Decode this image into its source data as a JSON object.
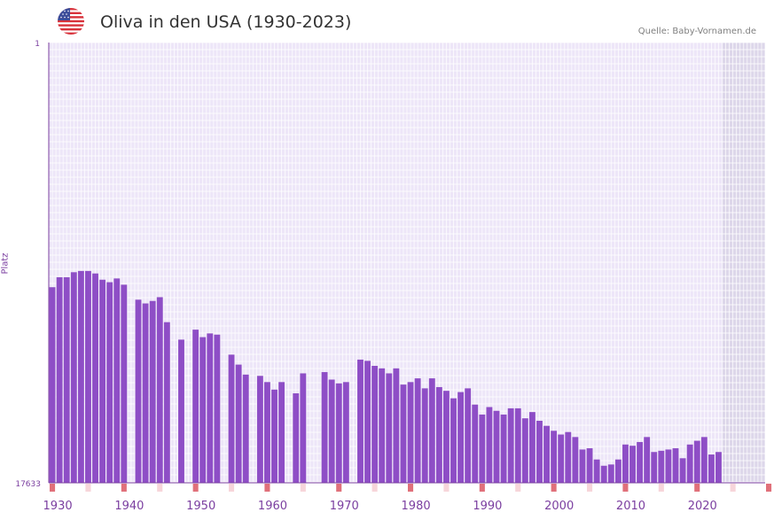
{
  "header": {
    "title": "Oliva in den USA (1930-2023)",
    "source": "Quelle: Baby-Vornamen.de",
    "flag_icon": "us-flag-icon"
  },
  "colors": {
    "bar": "#8e4ec6",
    "plot_bg": "#ede6f8",
    "future_bg": "#ddd7ea",
    "grid": "#ffffff",
    "axis": "#7b3fa0",
    "tick_text": "#7b3fa0",
    "marker_strong": "#e0707a",
    "marker_light": "#f7d5da"
  },
  "chart_data": {
    "type": "bar",
    "title": "Oliva in den USA (1930-2023)",
    "xlabel": "",
    "ylabel": "Platz",
    "y_axis_inverted": true,
    "ylim": [
      1,
      17633
    ],
    "y_ticks": [
      "1",
      "17633"
    ],
    "xlim": [
      1929,
      2029
    ],
    "x_ticks": [
      1930,
      1940,
      1950,
      1960,
      1970,
      1980,
      1990,
      2000,
      2010,
      2020
    ],
    "future_shading_from": 2023,
    "year_markers_strong": [
      1929,
      1939,
      1949,
      1959,
      1969,
      1979,
      1989,
      1999,
      2009,
      2019,
      2029
    ],
    "year_markers_light": [
      1934,
      1944,
      1954,
      1964,
      1974,
      1984,
      1994,
      2004,
      2014,
      2024
    ],
    "years": [
      1929,
      1930,
      1931,
      1932,
      1933,
      1934,
      1935,
      1936,
      1937,
      1938,
      1939,
      1940,
      1941,
      1942,
      1943,
      1944,
      1945,
      1946,
      1947,
      1948,
      1949,
      1950,
      1951,
      1952,
      1953,
      1954,
      1955,
      1956,
      1957,
      1958,
      1959,
      1960,
      1961,
      1962,
      1963,
      1964,
      1965,
      1966,
      1967,
      1968,
      1969,
      1970,
      1971,
      1972,
      1973,
      1974,
      1975,
      1976,
      1977,
      1978,
      1979,
      1980,
      1981,
      1982,
      1983,
      1984,
      1985,
      1986,
      1987,
      1988,
      1989,
      1990,
      1991,
      1992,
      1993,
      1994,
      1995,
      1996,
      1997,
      1998,
      1999,
      2000,
      2001,
      2002,
      2003,
      2004,
      2005,
      2006,
      2007,
      2008,
      2009,
      2010,
      2011,
      2012,
      2013,
      2014,
      2015,
      2016,
      2017,
      2018,
      2019,
      2020,
      2021,
      2022
    ],
    "ranks": [
      9800,
      9400,
      9400,
      9200,
      9150,
      9150,
      9250,
      9500,
      9600,
      9450,
      9700,
      null,
      10300,
      10450,
      10350,
      10200,
      11200,
      null,
      11900,
      null,
      11500,
      11800,
      11650,
      11700,
      null,
      12500,
      12900,
      13300,
      null,
      13350,
      13600,
      13900,
      13600,
      null,
      14050,
      13250,
      null,
      null,
      13200,
      13500,
      13650,
      13600,
      null,
      12700,
      12750,
      12950,
      13050,
      13250,
      13050,
      13700,
      13600,
      13450,
      13850,
      13450,
      13800,
      13950,
      14250,
      14000,
      13850,
      14500,
      14900,
      14600,
      14750,
      14900,
      14650,
      14650,
      15050,
      14800,
      15150,
      15350,
      15550,
      15700,
      15600,
      15800,
      16300,
      16250,
      16700,
      16950,
      16900,
      16700,
      16100,
      16150,
      16000,
      15800,
      16400,
      16350,
      16300,
      16250,
      16650,
      16100,
      15950,
      15800,
      16500,
      16400
    ]
  }
}
